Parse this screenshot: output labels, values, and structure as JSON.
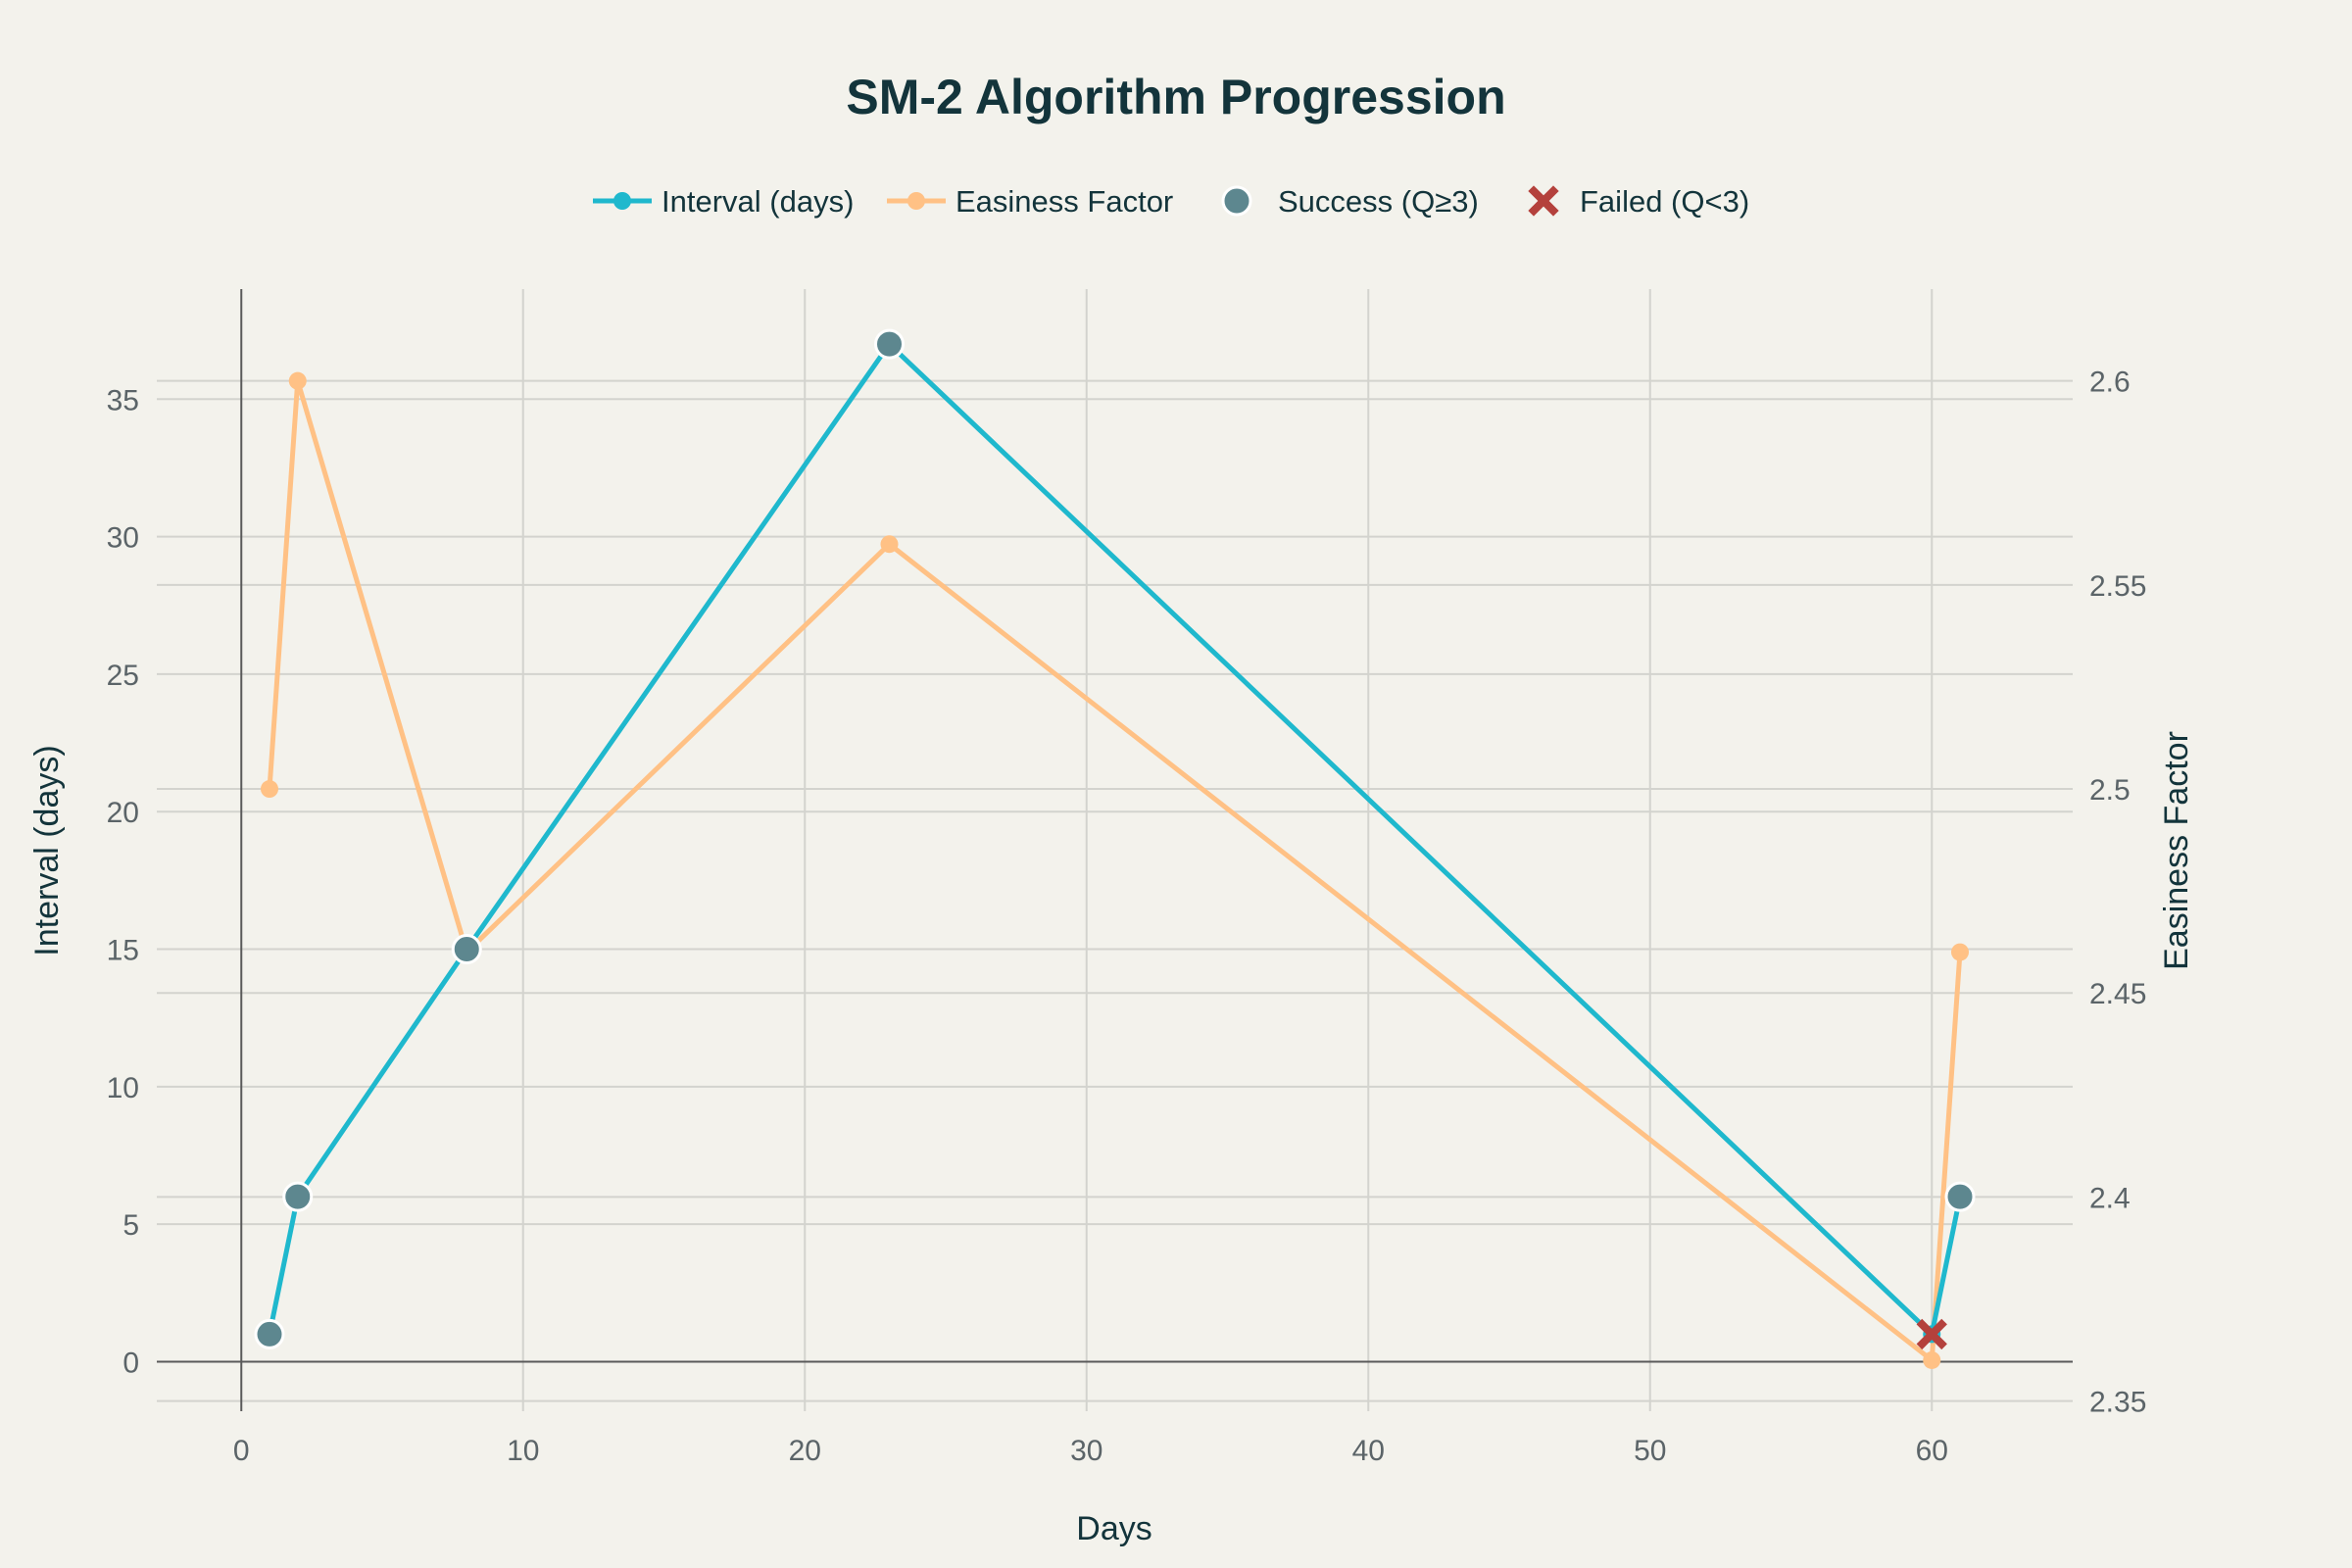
{
  "chart_data": {
    "type": "line",
    "title": "SM-2 Algorithm Progression",
    "xlabel": "Days",
    "ylabel": "Interval (days)",
    "y2label": "Easiness Factor",
    "xlim": [
      -3,
      65
    ],
    "ylim": [
      -1.8,
      39
    ],
    "y2lim": [
      2.3475,
      2.6225
    ],
    "xticks": [
      0,
      10,
      20,
      30,
      40,
      50,
      60
    ],
    "yticks": [
      0,
      5,
      10,
      15,
      20,
      25,
      30,
      35
    ],
    "y2ticks": [
      2.35,
      2.4,
      2.45,
      2.5,
      2.55,
      2.6
    ],
    "grid": true,
    "legend_position": "top-center",
    "colors": {
      "interval": "#1fb8cd",
      "easiness": "#ffc185",
      "success": "#5d878f",
      "failed": "#b4413c",
      "marker_outline": "#ffffff"
    },
    "legend": [
      {
        "key": "interval",
        "label": "Interval (days)"
      },
      {
        "key": "easiness",
        "label": "Easiness Factor"
      },
      {
        "key": "success",
        "label": "Success (Q≥3)"
      },
      {
        "key": "failed",
        "label": "Failed (Q<3)"
      }
    ],
    "series": [
      {
        "name": "Interval (days)",
        "axis": "y",
        "points": [
          {
            "x": 1,
            "y": 1
          },
          {
            "x": 2,
            "y": 6
          },
          {
            "x": 8,
            "y": 15
          },
          {
            "x": 23,
            "y": 37
          },
          {
            "x": 60,
            "y": 1
          },
          {
            "x": 61,
            "y": 6
          }
        ]
      },
      {
        "name": "Easiness Factor",
        "axis": "y2",
        "points": [
          {
            "x": 1,
            "y": 2.5
          },
          {
            "x": 2,
            "y": 2.6
          },
          {
            "x": 8,
            "y": 2.46
          },
          {
            "x": 23,
            "y": 2.56
          },
          {
            "x": 60,
            "y": 2.36
          },
          {
            "x": 61,
            "y": 2.46
          }
        ]
      },
      {
        "name": "Success (Q≥3)",
        "axis": "y",
        "points": [
          {
            "x": 1,
            "y": 1
          },
          {
            "x": 2,
            "y": 6
          },
          {
            "x": 8,
            "y": 15
          },
          {
            "x": 23,
            "y": 37
          },
          {
            "x": 61,
            "y": 6
          }
        ]
      },
      {
        "name": "Failed (Q<3)",
        "axis": "y",
        "points": [
          {
            "x": 60,
            "y": 1
          }
        ]
      }
    ]
  }
}
